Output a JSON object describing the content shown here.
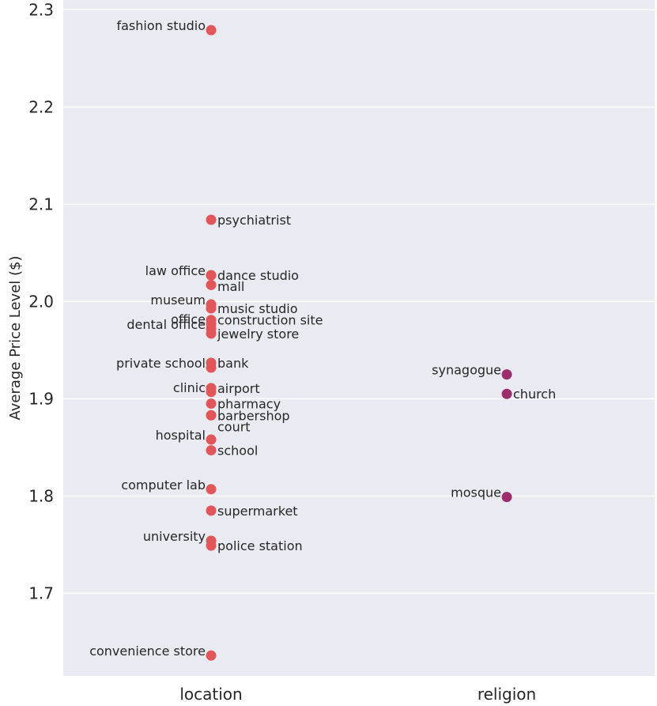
{
  "chart_data": {
    "type": "scatter",
    "title": "",
    "xlabel": "",
    "ylabel": "Average Price Level ($)",
    "ylim": [
      1.615,
      2.31
    ],
    "yticks": [
      "1.7",
      "1.8",
      "1.9",
      "2.0",
      "2.1",
      "2.2",
      "2.3"
    ],
    "ytick_values": [
      1.7,
      1.8,
      1.9,
      2.0,
      2.1,
      2.2,
      2.3
    ],
    "categories": [
      "location",
      "religion"
    ],
    "grid": true,
    "series": [
      {
        "name": "location",
        "color": "#e15759",
        "points": [
          {
            "label": "fashion studio",
            "value": 2.279,
            "side": "left"
          },
          {
            "label": "psychiatrist",
            "value": 2.084,
            "side": "right"
          },
          {
            "label": "dance studio",
            "value": 2.027,
            "side": "right"
          },
          {
            "label": "law office",
            "value": 2.027,
            "side": "left"
          },
          {
            "label": "mall",
            "value": 2.017,
            "side": "right"
          },
          {
            "label": "museum",
            "value": 1.997,
            "side": "left"
          },
          {
            "label": "music studio",
            "value": 1.993,
            "side": "right"
          },
          {
            "label": "construction site",
            "value": 1.981,
            "side": "right"
          },
          {
            "label": "office",
            "value": 1.977,
            "side": "left"
          },
          {
            "label": "dental office",
            "value": 1.972,
            "side": "left"
          },
          {
            "label": "jewelry store",
            "value": 1.967,
            "side": "right"
          },
          {
            "label": "bank",
            "value": 1.937,
            "side": "right"
          },
          {
            "label": "private school",
            "value": 1.932,
            "side": "left"
          },
          {
            "label": "airport",
            "value": 1.911,
            "side": "right"
          },
          {
            "label": "clinic",
            "value": 1.907,
            "side": "left"
          },
          {
            "label": "pharmacy",
            "value": 1.895,
            "side": "right"
          },
          {
            "label": "barbershop",
            "value": 1.883,
            "side": "right"
          },
          {
            "label": "court",
            "value": 1.883,
            "side": "right"
          },
          {
            "label": "hospital",
            "value": 1.858,
            "side": "left"
          },
          {
            "label": "school",
            "value": 1.847,
            "side": "right"
          },
          {
            "label": "computer lab",
            "value": 1.807,
            "side": "left"
          },
          {
            "label": "supermarket",
            "value": 1.785,
            "side": "right"
          },
          {
            "label": "university",
            "value": 1.754,
            "side": "left"
          },
          {
            "label": "police station",
            "value": 1.749,
            "side": "right"
          },
          {
            "label": "convenience store",
            "value": 1.636,
            "side": "left"
          }
        ]
      },
      {
        "name": "religion",
        "color": "#9c2e6e",
        "points": [
          {
            "label": "synagogue",
            "value": 1.925,
            "side": "left"
          },
          {
            "label": "church",
            "value": 1.905,
            "side": "right"
          },
          {
            "label": "mosque",
            "value": 1.799,
            "side": "left"
          }
        ]
      }
    ]
  }
}
